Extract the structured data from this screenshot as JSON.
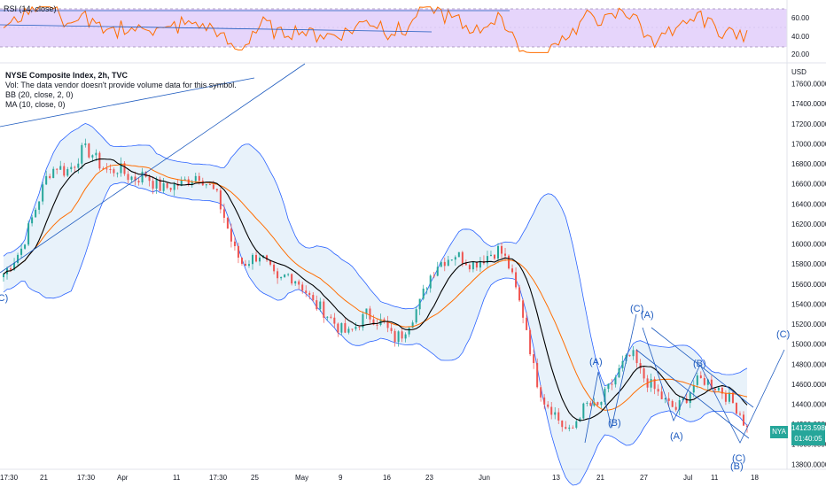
{
  "colors": {
    "up": "#26a69a",
    "down": "#ef5350",
    "bb_line": "#2962ff",
    "bb_fill": "#d8eaf7",
    "ma10": "#000000",
    "ma20": "#ff6d00",
    "rsi_line": "#ff6d00",
    "rsi_band": "#e6d5fb",
    "wave": "#1e5bbf",
    "price_badge": "#26a69a"
  },
  "rsi": {
    "label": "RSI (14, close)",
    "ticks": [
      "60.00",
      "40.00",
      "20.00"
    ],
    "upper": 70,
    "lower": 30
  },
  "legend": {
    "title": "NYSE Composite Index, 2h, TVC",
    "vol": "Vol: The data vendor doesn't provide volume data for this symbol.",
    "bb": "BB (20, close, 2, 0)",
    "ma": "MA (10, close, 0)"
  },
  "currency": "USD",
  "price_ticks": [
    "17600.0000",
    "17400.0000",
    "17200.0000",
    "17000.0000",
    "16800.0000",
    "16600.0000",
    "16400.0000",
    "16200.0000",
    "16000.0000",
    "15800.0000",
    "15600.0000",
    "15400.0000",
    "15200.0000",
    "15000.0000",
    "14800.0000",
    "14600.0000",
    "14400.0000",
    "14200.0000",
    "14000.0000",
    "13800.0000"
  ],
  "ticker": "NYA",
  "last_price": "14123.5980",
  "countdown": "01:40:05",
  "x_ticks": [
    "17:30",
    "21",
    "17:30",
    "Apr",
    "11",
    "17:30",
    "25",
    "May",
    "9",
    "16",
    "23",
    "Jun",
    "13",
    "21",
    "27",
    "Jul",
    "11",
    "18"
  ],
  "wave_labels": [
    {
      "text": "(C)"
    },
    {
      "text": "(A)"
    },
    {
      "text": "(A)"
    },
    {
      "text": "(B)"
    },
    {
      "text": "(B)"
    },
    {
      "text": "(A)"
    },
    {
      "text": "(B)"
    },
    {
      "text": "(C)"
    },
    {
      "text": "(C)"
    },
    {
      "text": "(B)"
    }
  ],
  "chart_data": {
    "type": "candlestick",
    "title": "NYSE Composite Index, 2h, TVC",
    "ylim": [
      13750,
      17800
    ],
    "y_unit": "USD",
    "series": [
      {
        "name": "BB (20, close, 2, 0)"
      },
      {
        "name": "MA (10, close, 0)"
      },
      {
        "name": "RSI (14, close)"
      }
    ],
    "x_labels": [
      "17:30",
      "21",
      "17:30",
      "Apr",
      "11",
      "17:30",
      "25",
      "May",
      "9",
      "16",
      "23",
      "Jun",
      "13",
      "21",
      "27",
      "Jul",
      "11",
      "18"
    ],
    "close_path": [
      15700,
      15820,
      15950,
      16200,
      16450,
      16700,
      16780,
      16720,
      16800,
      16950,
      16900,
      16780,
      16720,
      16760,
      16680,
      16650,
      16700,
      16600,
      16550,
      16580,
      16600,
      16650,
      16700,
      16600,
      16500,
      16250,
      15950,
      15800,
      15850,
      15900,
      15750,
      15600,
      15700,
      15650,
      15550,
      15400,
      15350,
      15250,
      15150,
      15100,
      15200,
      15300,
      15250,
      15200,
      15050,
      15100,
      15250,
      15400,
      15650,
      15800,
      15850,
      15900,
      15850,
      15800,
      15850,
      15900,
      15950,
      15800,
      15500,
      15200,
      14700,
      14450,
      14350,
      14200,
      14100,
      14300,
      14400,
      14350,
      14500,
      14650,
      14800,
      14900,
      14700,
      14600,
      14500,
      14400,
      14350,
      14450,
      14600,
      14650,
      14600,
      14550,
      14450,
      14350,
      14150
    ],
    "last_price": 14123.598
  }
}
